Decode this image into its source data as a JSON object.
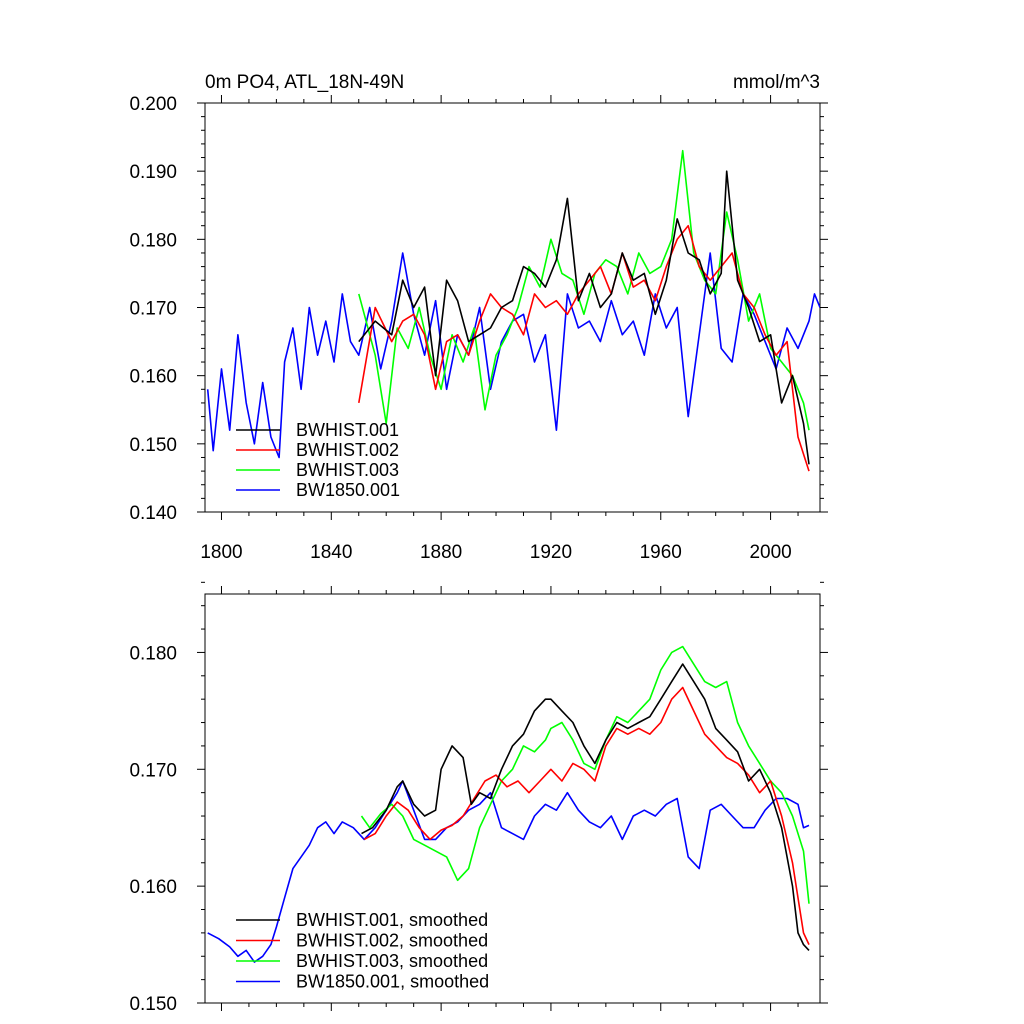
{
  "chart_data": [
    {
      "type": "line",
      "title": "0m PO4, ATL_18N-49N",
      "units": "mmol/m^3",
      "xlim": [
        1794,
        2018
      ],
      "ylim": [
        0.14,
        0.2
      ],
      "x_ticks": [
        1800,
        1840,
        1880,
        1920,
        1960,
        2000
      ],
      "x_tick_labels": [
        "1800",
        "1840",
        "1880",
        "1920",
        "1960",
        "2000"
      ],
      "y_ticks": [
        0.14,
        0.15,
        0.16,
        0.17,
        0.18,
        0.19,
        0.2
      ],
      "y_tick_labels": [
        "0.140",
        "0.150",
        "0.160",
        "0.170",
        "0.180",
        "0.190",
        "0.200"
      ],
      "legend_position": "bottom-left",
      "series": [
        {
          "name": "BWHIST.001",
          "color": "#000000",
          "x": [
            1850,
            1856,
            1862,
            1866,
            1870,
            1874,
            1878,
            1882,
            1886,
            1890,
            1894,
            1898,
            1902,
            1906,
            1910,
            1914,
            1918,
            1922,
            1926,
            1930,
            1934,
            1938,
            1942,
            1946,
            1950,
            1954,
            1958,
            1962,
            1966,
            1970,
            1974,
            1978,
            1982,
            1984,
            1988,
            1992,
            1996,
            2000,
            2004,
            2008,
            2012,
            2014
          ],
          "y": [
            0.165,
            0.168,
            0.166,
            0.174,
            0.17,
            0.173,
            0.16,
            0.174,
            0.171,
            0.165,
            0.166,
            0.167,
            0.17,
            0.171,
            0.176,
            0.175,
            0.173,
            0.177,
            0.186,
            0.171,
            0.175,
            0.17,
            0.172,
            0.178,
            0.174,
            0.175,
            0.169,
            0.174,
            0.183,
            0.178,
            0.177,
            0.172,
            0.175,
            0.19,
            0.174,
            0.17,
            0.165,
            0.166,
            0.156,
            0.16,
            0.153,
            0.147
          ]
        },
        {
          "name": "BWHIST.002",
          "color": "#ff0000",
          "x": [
            1850,
            1856,
            1862,
            1866,
            1870,
            1874,
            1878,
            1882,
            1886,
            1890,
            1894,
            1898,
            1902,
            1906,
            1910,
            1914,
            1918,
            1922,
            1926,
            1930,
            1934,
            1938,
            1942,
            1946,
            1950,
            1954,
            1958,
            1962,
            1966,
            1970,
            1974,
            1978,
            1982,
            1986,
            1990,
            1994,
            1998,
            2002,
            2006,
            2010,
            2014
          ],
          "y": [
            0.156,
            0.17,
            0.165,
            0.168,
            0.169,
            0.166,
            0.158,
            0.165,
            0.166,
            0.163,
            0.168,
            0.172,
            0.17,
            0.169,
            0.166,
            0.172,
            0.17,
            0.171,
            0.169,
            0.172,
            0.174,
            0.176,
            0.172,
            0.178,
            0.173,
            0.174,
            0.171,
            0.176,
            0.18,
            0.182,
            0.176,
            0.174,
            0.176,
            0.178,
            0.172,
            0.17,
            0.166,
            0.163,
            0.165,
            0.151,
            0.146
          ]
        },
        {
          "name": "BWHIST.003",
          "color": "#00ff00",
          "x": [
            1850,
            1856,
            1860,
            1864,
            1868,
            1872,
            1876,
            1880,
            1884,
            1888,
            1892,
            1896,
            1900,
            1904,
            1908,
            1912,
            1916,
            1920,
            1924,
            1928,
            1932,
            1936,
            1940,
            1944,
            1948,
            1952,
            1956,
            1960,
            1964,
            1968,
            1972,
            1976,
            1980,
            1984,
            1988,
            1992,
            1996,
            2000,
            2004,
            2008,
            2012,
            2014
          ],
          "y": [
            0.172,
            0.163,
            0.153,
            0.167,
            0.164,
            0.17,
            0.163,
            0.158,
            0.166,
            0.162,
            0.167,
            0.155,
            0.163,
            0.166,
            0.17,
            0.176,
            0.173,
            0.18,
            0.175,
            0.174,
            0.169,
            0.175,
            0.177,
            0.176,
            0.172,
            0.178,
            0.175,
            0.176,
            0.18,
            0.193,
            0.178,
            0.174,
            0.172,
            0.184,
            0.177,
            0.168,
            0.172,
            0.164,
            0.162,
            0.16,
            0.156,
            0.152
          ]
        },
        {
          "name": "BW1850.001",
          "color": "#0000ff",
          "x": [
            1795,
            1797,
            1800,
            1803,
            1806,
            1809,
            1812,
            1815,
            1818,
            1821,
            1823,
            1826,
            1829,
            1832,
            1835,
            1838,
            1841,
            1844,
            1847,
            1850,
            1854,
            1858,
            1862,
            1866,
            1870,
            1874,
            1878,
            1882,
            1886,
            1890,
            1894,
            1898,
            1902,
            1906,
            1910,
            1914,
            1918,
            1922,
            1926,
            1930,
            1934,
            1938,
            1942,
            1946,
            1950,
            1954,
            1958,
            1962,
            1966,
            1970,
            1974,
            1978,
            1982,
            1986,
            1990,
            1994,
            1998,
            2002,
            2006,
            2010,
            2014,
            2016,
            2018
          ],
          "y": [
            0.158,
            0.149,
            0.161,
            0.152,
            0.166,
            0.156,
            0.15,
            0.159,
            0.151,
            0.148,
            0.162,
            0.167,
            0.158,
            0.17,
            0.163,
            0.168,
            0.162,
            0.172,
            0.165,
            0.163,
            0.17,
            0.161,
            0.168,
            0.178,
            0.169,
            0.163,
            0.171,
            0.158,
            0.166,
            0.163,
            0.17,
            0.158,
            0.165,
            0.168,
            0.169,
            0.162,
            0.166,
            0.152,
            0.172,
            0.167,
            0.168,
            0.165,
            0.171,
            0.166,
            0.168,
            0.163,
            0.172,
            0.167,
            0.17,
            0.154,
            0.166,
            0.178,
            0.164,
            0.162,
            0.172,
            0.169,
            0.165,
            0.161,
            0.167,
            0.164,
            0.168,
            0.172,
            0.17
          ]
        }
      ]
    },
    {
      "type": "line",
      "title": "",
      "xlim": [
        1794,
        2018
      ],
      "ylim": [
        0.15,
        0.185
      ],
      "x_ticks": [
        1800,
        1840,
        1880,
        1920,
        1960,
        2000
      ],
      "y_ticks": [
        0.15,
        0.16,
        0.17,
        0.18
      ],
      "y_tick_labels": [
        "0.150",
        "0.160",
        "0.170",
        "0.180"
      ],
      "legend_position": "bottom-left",
      "series": [
        {
          "name": "BWHIST.001, smoothed",
          "color": "#000000",
          "x": [
            1851,
            1855,
            1860,
            1864,
            1866,
            1870,
            1874,
            1878,
            1880,
            1884,
            1888,
            1891,
            1894,
            1898,
            1902,
            1906,
            1910,
            1914,
            1918,
            1920,
            1924,
            1928,
            1932,
            1936,
            1940,
            1944,
            1948,
            1952,
            1956,
            1960,
            1964,
            1968,
            1972,
            1976,
            1980,
            1984,
            1988,
            1992,
            1996,
            2000,
            2004,
            2008,
            2010,
            2012,
            2014
          ],
          "y": [
            0.1645,
            0.165,
            0.1665,
            0.1685,
            0.169,
            0.167,
            0.166,
            0.1665,
            0.17,
            0.172,
            0.171,
            0.167,
            0.168,
            0.1675,
            0.17,
            0.172,
            0.173,
            0.175,
            0.176,
            0.176,
            0.175,
            0.174,
            0.172,
            0.1705,
            0.1725,
            0.174,
            0.1735,
            0.174,
            0.1745,
            0.176,
            0.1775,
            0.179,
            0.1775,
            0.176,
            0.1735,
            0.1725,
            0.1715,
            0.169,
            0.17,
            0.168,
            0.165,
            0.16,
            0.156,
            0.155,
            0.1545
          ]
        },
        {
          "name": "BWHIST.002, smoothed",
          "color": "#ff0000",
          "x": [
            1852,
            1856,
            1860,
            1864,
            1868,
            1872,
            1876,
            1880,
            1884,
            1888,
            1892,
            1896,
            1900,
            1904,
            1908,
            1912,
            1916,
            1920,
            1924,
            1928,
            1932,
            1936,
            1940,
            1944,
            1948,
            1952,
            1956,
            1960,
            1964,
            1968,
            1972,
            1976,
            1980,
            1984,
            1988,
            1992,
            1996,
            2000,
            2004,
            2008,
            2012,
            2014
          ],
          "y": [
            0.164,
            0.1645,
            0.166,
            0.1672,
            0.1665,
            0.165,
            0.164,
            0.1648,
            0.1652,
            0.166,
            0.1675,
            0.169,
            0.1695,
            0.1685,
            0.169,
            0.168,
            0.169,
            0.17,
            0.169,
            0.1705,
            0.17,
            0.169,
            0.172,
            0.1735,
            0.173,
            0.1735,
            0.173,
            0.174,
            0.176,
            0.177,
            0.175,
            0.173,
            0.172,
            0.171,
            0.1705,
            0.1695,
            0.168,
            0.169,
            0.166,
            0.162,
            0.156,
            0.155
          ]
        },
        {
          "name": "BWHIST.003, smoothed",
          "color": "#00ff00",
          "x": [
            1851,
            1854,
            1858,
            1862,
            1866,
            1870,
            1874,
            1878,
            1882,
            1886,
            1890,
            1894,
            1898,
            1902,
            1906,
            1910,
            1914,
            1918,
            1920,
            1924,
            1928,
            1932,
            1936,
            1940,
            1944,
            1948,
            1952,
            1956,
            1960,
            1964,
            1968,
            1972,
            1976,
            1980,
            1984,
            1988,
            1992,
            1996,
            2000,
            2004,
            2008,
            2012,
            2014
          ],
          "y": [
            0.166,
            0.165,
            0.1662,
            0.167,
            0.166,
            0.164,
            0.1635,
            0.163,
            0.1625,
            0.1605,
            0.1615,
            0.165,
            0.167,
            0.169,
            0.17,
            0.172,
            0.1715,
            0.1725,
            0.1735,
            0.174,
            0.1725,
            0.1705,
            0.17,
            0.1725,
            0.1745,
            0.174,
            0.175,
            0.176,
            0.1785,
            0.18,
            0.1805,
            0.179,
            0.1775,
            0.177,
            0.1775,
            0.174,
            0.172,
            0.1705,
            0.169,
            0.168,
            0.166,
            0.163,
            0.1585
          ]
        },
        {
          "name": "BW1850.001, smoothed",
          "color": "#0000ff",
          "x": [
            1795,
            1799,
            1803,
            1806,
            1809,
            1812,
            1815,
            1818,
            1820,
            1823,
            1826,
            1829,
            1832,
            1835,
            1838,
            1841,
            1844,
            1848,
            1852,
            1856,
            1860,
            1864,
            1866,
            1870,
            1874,
            1878,
            1882,
            1886,
            1890,
            1894,
            1898,
            1902,
            1906,
            1910,
            1914,
            1918,
            1922,
            1926,
            1930,
            1934,
            1938,
            1942,
            1946,
            1950,
            1954,
            1958,
            1962,
            1966,
            1970,
            1974,
            1978,
            1982,
            1986,
            1990,
            1994,
            1998,
            2002,
            2006,
            2010,
            2012,
            2014
          ],
          "y": [
            0.156,
            0.1555,
            0.1548,
            0.154,
            0.1545,
            0.1535,
            0.154,
            0.155,
            0.1565,
            0.159,
            0.1615,
            0.1625,
            0.1635,
            0.165,
            0.1655,
            0.1645,
            0.1655,
            0.165,
            0.164,
            0.165,
            0.1665,
            0.168,
            0.169,
            0.1665,
            0.164,
            0.164,
            0.165,
            0.1655,
            0.1665,
            0.167,
            0.168,
            0.165,
            0.1645,
            0.164,
            0.166,
            0.167,
            0.1665,
            0.168,
            0.1665,
            0.1655,
            0.165,
            0.166,
            0.164,
            0.166,
            0.1665,
            0.166,
            0.167,
            0.1675,
            0.1625,
            0.1615,
            0.1665,
            0.167,
            0.166,
            0.165,
            0.165,
            0.1665,
            0.1675,
            0.1675,
            0.167,
            0.165,
            0.1652
          ]
        }
      ]
    }
  ]
}
